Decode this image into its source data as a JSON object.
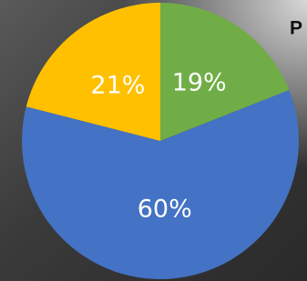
{
  "chart_data": {
    "type": "pie",
    "title": "P",
    "values": [
      19,
      60,
      21
    ],
    "value_labels": [
      "19%",
      "60%",
      "21%"
    ],
    "colors": [
      "#70ad47",
      "#4472c4",
      "#ffc000"
    ]
  }
}
